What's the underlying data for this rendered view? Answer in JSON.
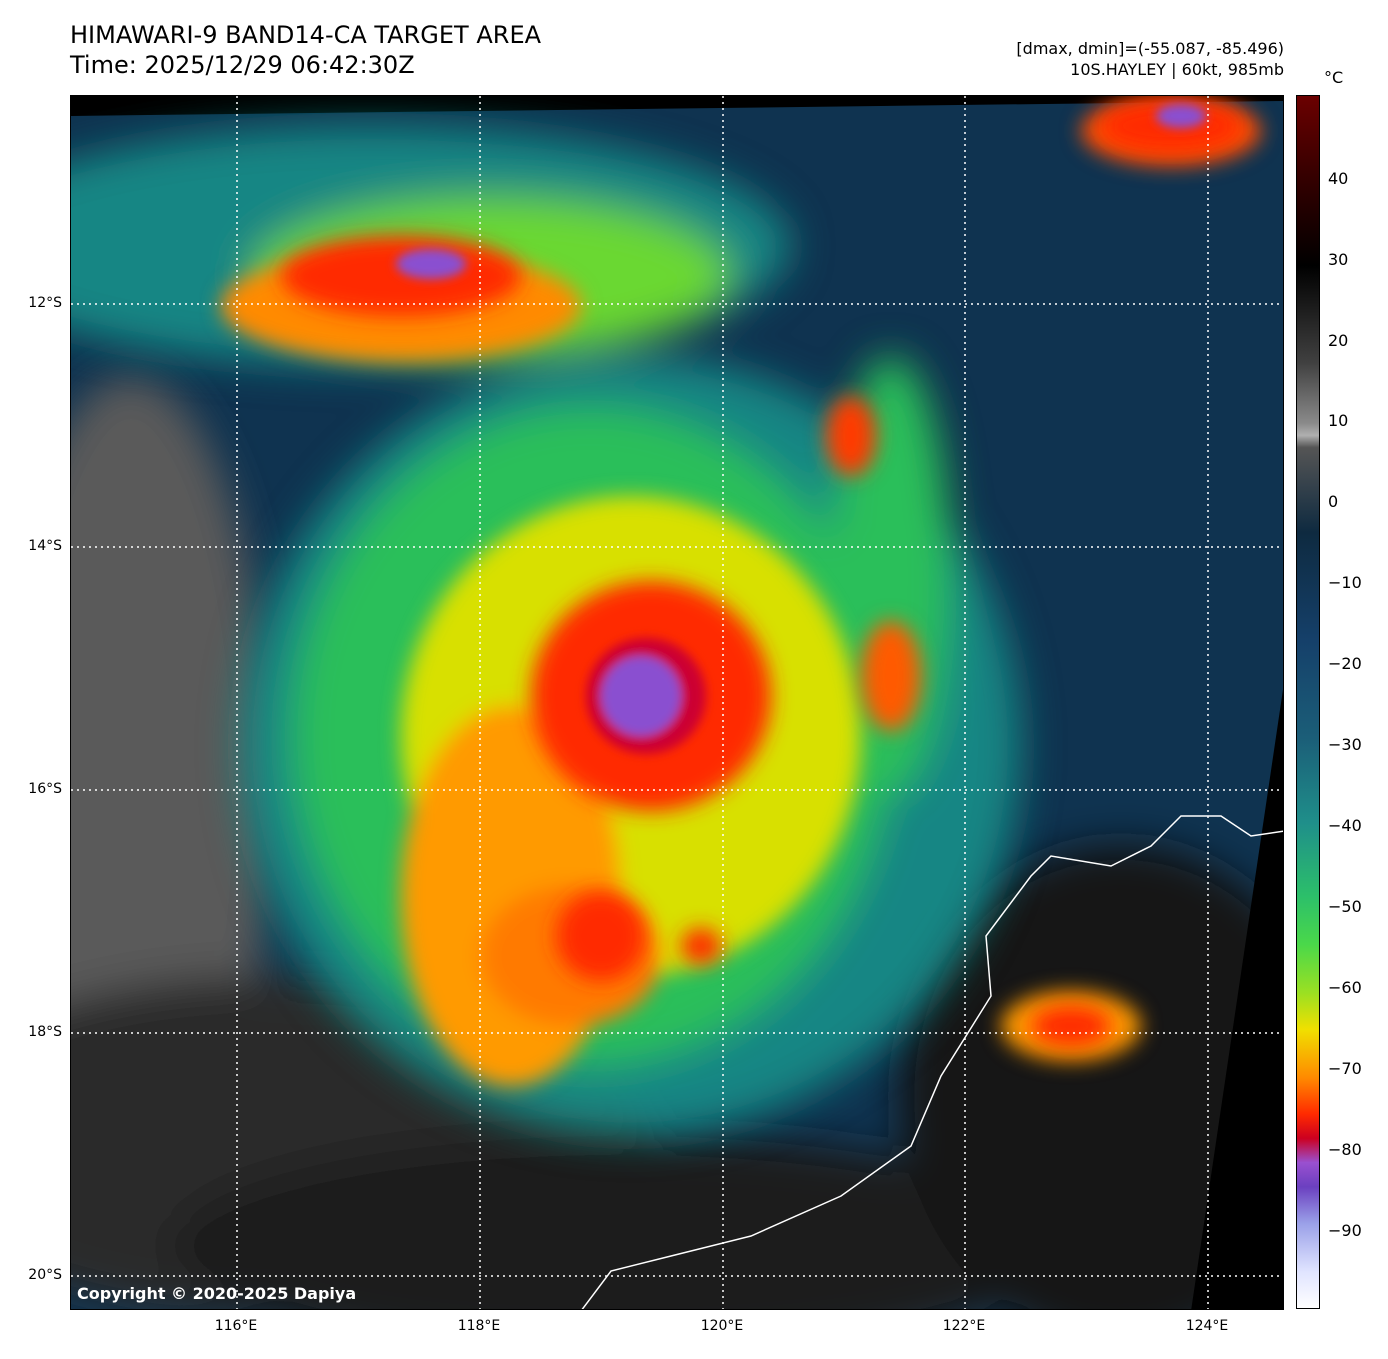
{
  "title": {
    "line1": "HIMAWARI-9 BAND14-CA TARGET AREA",
    "line2": "Time: 2025/12/29 06:42:30Z"
  },
  "meta": {
    "range": "[dmax, dmin]=(-55.087, -85.496)",
    "storm": "10S.HAYLEY | 60kt, 985mb"
  },
  "copyright": "Copyright © 2020-2025 Dapiya",
  "lat_labels": [
    "12°S",
    "14°S",
    "16°S",
    "18°S",
    "20°S"
  ],
  "lon_labels": [
    "116°E",
    "118°E",
    "120°E",
    "122°E",
    "124°E"
  ],
  "colorbar": {
    "unit": "°C",
    "ticks": [
      "40",
      "30",
      "20",
      "10",
      "0",
      "−10",
      "−20",
      "−30",
      "−40",
      "−50",
      "−60",
      "−70",
      "−80",
      "−90"
    ]
  }
}
